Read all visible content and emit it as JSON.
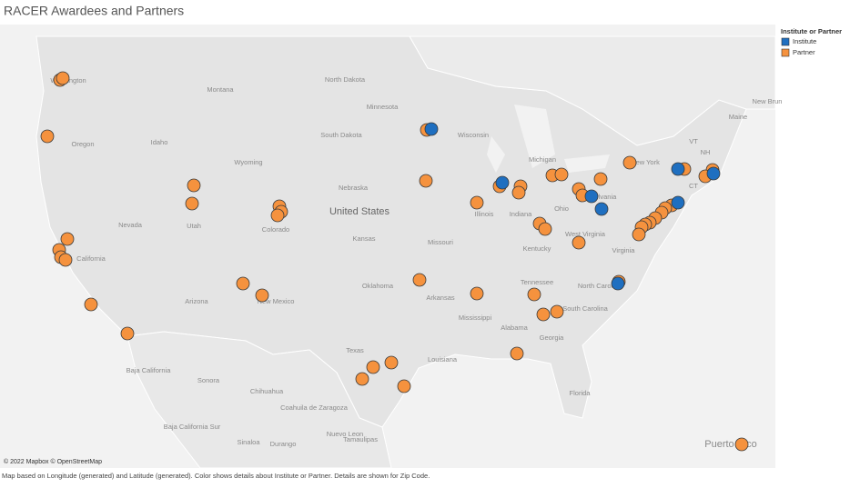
{
  "header": {
    "title": "RACER Awardees and Partners"
  },
  "legend": {
    "title": "Institute or Partner",
    "items": [
      {
        "label": "Institute",
        "color": "#1f6fc0"
      },
      {
        "label": "Partner",
        "color": "#f5923e"
      }
    ]
  },
  "map": {
    "labels": [
      "Washington",
      "Montana",
      "North Dakota",
      "Oregon",
      "Idaho",
      "Wyoming",
      "South Dakota",
      "Wisconsin",
      "Minnesota",
      "Nebraska",
      "United States",
      "Nevada",
      "Utah",
      "Colorado",
      "Kansas",
      "California",
      "Illinois",
      "Indiana",
      "Ohio",
      "Michigan",
      "Pennsylvania",
      "New York",
      "VT",
      "NH",
      "Maine",
      "CT",
      "Missouri",
      "Kentucky",
      "West Virginia",
      "Virginia",
      "Tennessee",
      "Arizona",
      "New Mexico",
      "Oklahoma",
      "Arkansas",
      "North Carolina",
      "South Carolina",
      "Mississippi",
      "Alabama",
      "Georgia",
      "Texas",
      "Louisiana",
      "Florida",
      "Baja California",
      "Sonora",
      "Chihuahua",
      "Coahuila de Zaragoza",
      "Baja California Sur",
      "Nuevo Leon",
      "Sinaloa",
      "Durango",
      "Tamaulipas",
      "Puerto Rico",
      "New Brun"
    ],
    "attribution": "© 2022 Mapbox © OpenStreetMap"
  },
  "footer": "Map based on Longitude (generated) and Latitude (generated).  Color shows details about Institute or Partner.  Details are shown for Zip Code."
}
